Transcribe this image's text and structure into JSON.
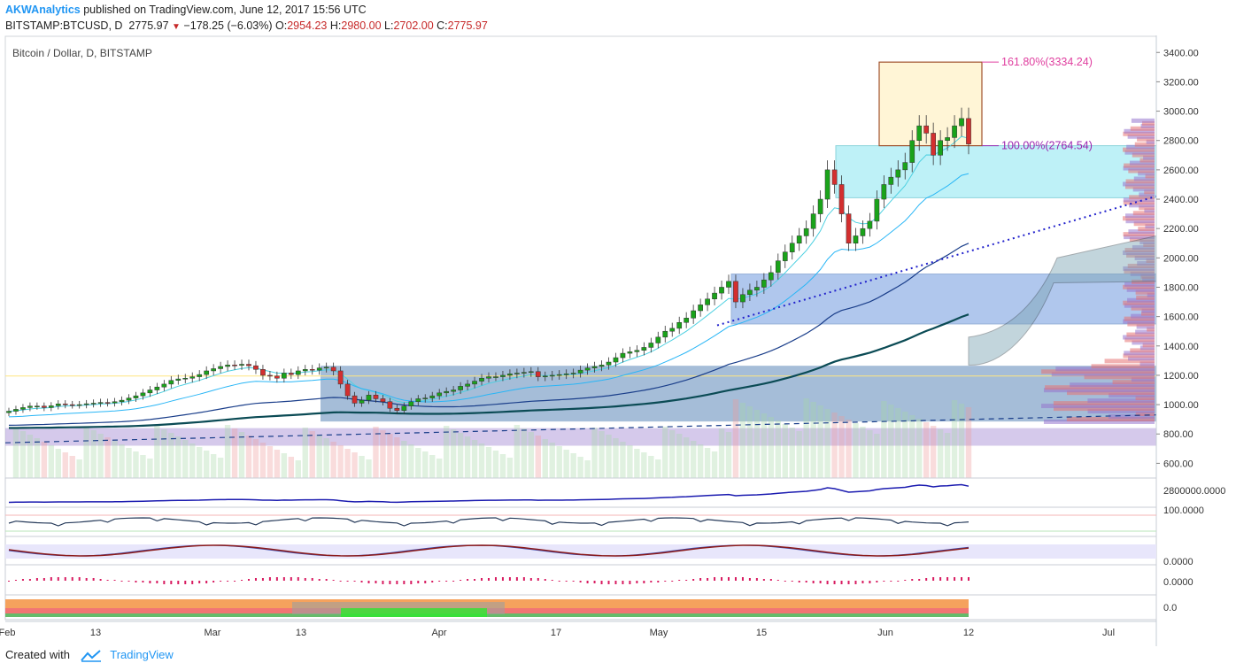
{
  "header": {
    "publisher": "AKWAnalytics",
    "published_text": "published on TradingView.com, June 12, 2017 15:56 UTC",
    "symbol": "BITSTAMP:BTCUSD, D",
    "last": "2775.97",
    "change": "−178.25 (−6.03%)",
    "o_label": "O:",
    "o_value": "2954.23",
    "h_label": "H:",
    "h_value": "2980.00",
    "l_label": "L:",
    "l_value": "2702.00",
    "c_label": "C:",
    "c_value": "2775.97"
  },
  "pane_title": "Bitcoin / Dollar, D, BITSTAMP",
  "footer": {
    "created_with": "Created with",
    "brand": "TradingView"
  },
  "colors": {
    "up": "#1aa31a",
    "down": "#d32f2f",
    "fib_161": "#e040a0",
    "fib_100": "#9c27b0",
    "target_box": "#fff5d6",
    "cyan_box": "#b8f0f7",
    "blue_box": "#8fb0e6"
  },
  "chart_data": {
    "type": "candlestick",
    "title": "Bitcoin / Dollar, D, BITSTAMP",
    "y_ticks": [
      "3400.00",
      "3200.00",
      "3000.00",
      "2800.00",
      "2600.00",
      "2400.00",
      "2200.00",
      "2000.00",
      "1800.00",
      "1600.00",
      "1400.00",
      "1200.00",
      "1000.00",
      "800.00",
      "600.00"
    ],
    "x_ticks": [
      "Feb",
      "13",
      "Mar",
      "13",
      "Apr",
      "17",
      "May",
      "15",
      "Jun",
      "12",
      "Jul"
    ],
    "ylim": [
      530,
      3480
    ],
    "date_range": [
      "2017-02-01",
      "2017-06-12"
    ],
    "close_series": [
      955,
      968,
      980,
      990,
      990,
      980,
      992,
      1005,
      1000,
      998,
      1000,
      1006,
      1010,
      1015,
      1012,
      1020,
      1030,
      1045,
      1060,
      1080,
      1100,
      1120,
      1140,
      1165,
      1175,
      1180,
      1190,
      1205,
      1230,
      1245,
      1260,
      1270,
      1268,
      1275,
      1265,
      1240,
      1200,
      1195,
      1180,
      1215,
      1205,
      1230,
      1240,
      1235,
      1250,
      1255,
      1230,
      1140,
      1060,
      1010,
      1030,
      1065,
      1040,
      1020,
      975,
      960,
      990,
      1020,
      1040,
      1045,
      1060,
      1080,
      1090,
      1100,
      1125,
      1140,
      1160,
      1180,
      1190,
      1190,
      1200,
      1210,
      1215,
      1220,
      1225,
      1190,
      1195,
      1200,
      1205,
      1210,
      1215,
      1235,
      1250,
      1260,
      1270,
      1290,
      1320,
      1350,
      1360,
      1370,
      1390,
      1420,
      1460,
      1500,
      1520,
      1560,
      1590,
      1640,
      1680,
      1720,
      1760,
      1800,
      1840,
      1700,
      1750,
      1780,
      1800,
      1850,
      1900,
      1980,
      2040,
      2100,
      2150,
      2200,
      2300,
      2400,
      2600,
      2500,
      2300,
      2100,
      2150,
      2200,
      2250,
      2400,
      2500,
      2550,
      2600,
      2650,
      2800,
      2900,
      2850,
      2700,
      2800,
      2820,
      2900,
      2950,
      2775.97
    ],
    "annotations": {
      "fib_161": "161.80%(3334.24)",
      "fib_100": "100.00%(2764.54)",
      "target_box": [
        2764.54,
        3334.24
      ],
      "cyan_zone": [
        2410,
        2764.54
      ],
      "blue_zone_1": [
        1550,
        1890
      ],
      "blue_zone_2": [
        885,
        1265
      ],
      "purple_zone": [
        720,
        840
      ]
    },
    "indicators": {
      "volume_axis": "2800000.0000",
      "oscillator_1_level": "100.0000",
      "oscillator_2_level": "0.0000",
      "histogram_level": "0.0000",
      "heat_strip_level": "0.0"
    }
  }
}
